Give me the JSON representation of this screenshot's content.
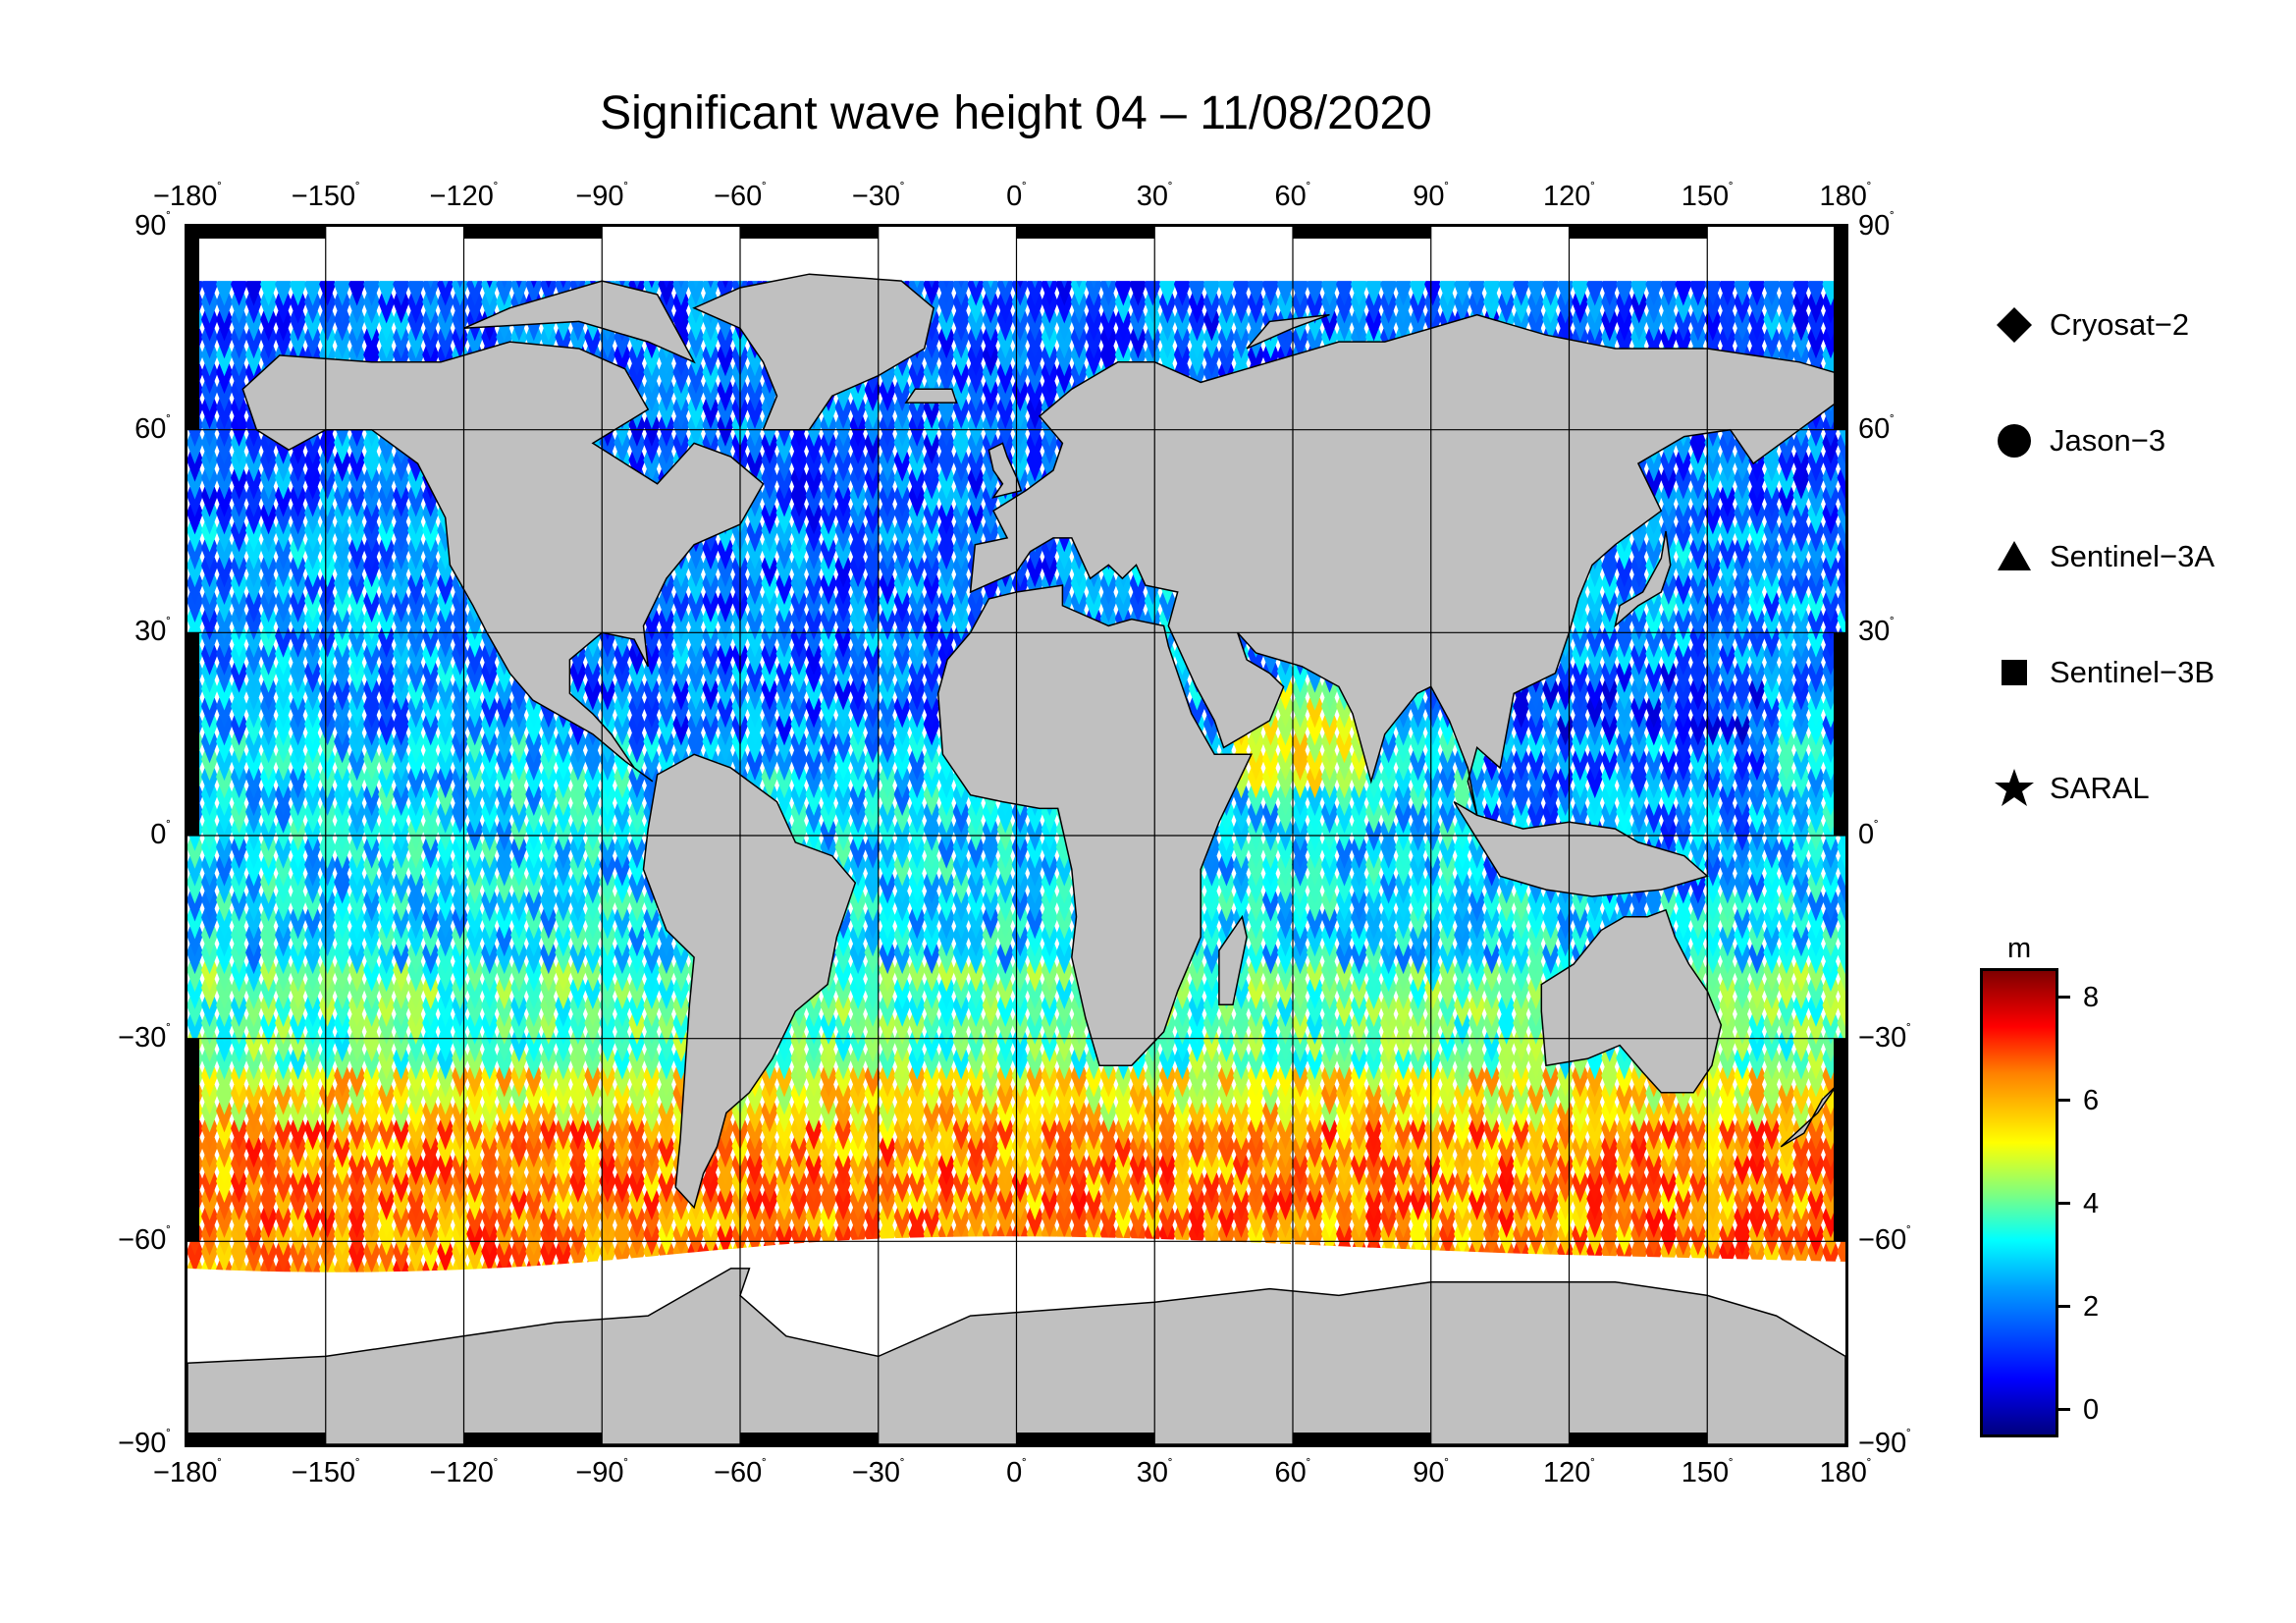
{
  "title": "Significant wave height 04 – 11/08/2020",
  "lon_ticks": [
    "−180",
    "−150",
    "−120",
    "−90",
    "−60",
    "−30",
    "0",
    "30",
    "60",
    "90",
    "120",
    "150",
    "180"
  ],
  "lat_ticks": [
    "90",
    "60",
    "30",
    "0",
    "−30",
    "−60",
    "−90"
  ],
  "degree_symbol": "˚",
  "legend": [
    {
      "label": "Cryosat−2",
      "symbol": "diamond"
    },
    {
      "label": "Jason−3",
      "symbol": "circle"
    },
    {
      "label": "Sentinel−3A",
      "symbol": "triangle"
    },
    {
      "label": "Sentinel−3B",
      "symbol": "square"
    },
    {
      "label": "SARAL",
      "symbol": "star"
    }
  ],
  "colorbar": {
    "unit": "m",
    "ticks": [
      "0",
      "2",
      "4",
      "6",
      "8"
    ],
    "range": [
      -0.5,
      8.5
    ],
    "colormap": "jet"
  },
  "colors": {
    "land": "#c0c0c0",
    "ice": "#ffffff",
    "frame": "#000000"
  }
}
